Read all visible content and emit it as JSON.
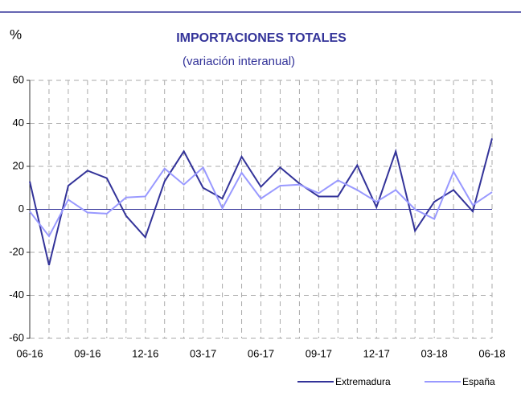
{
  "chart_data": {
    "type": "line",
    "title": "IMPORTACIONES TOTALES",
    "subtitle": "(variación interanual)",
    "y_label": "%",
    "categories": [
      "06-16",
      null,
      null,
      "09-16",
      null,
      null,
      "12-16",
      null,
      null,
      "03-17",
      null,
      null,
      "06-17",
      null,
      null,
      "09-17",
      null,
      null,
      "12-17",
      null,
      null,
      "03-18",
      null,
      null,
      "06-18"
    ],
    "series": [
      {
        "name": "Extremadura",
        "color": "#333399",
        "values": [
          13,
          -26,
          11,
          18,
          14.5,
          -3,
          -13,
          13,
          27,
          10,
          5,
          24.5,
          10.5,
          19.5,
          12,
          6,
          6,
          20.5,
          1,
          27,
          -10,
          3.5,
          9,
          -1,
          33
        ]
      },
      {
        "name": "España",
        "color": "#9999ff",
        "values": [
          -1,
          -12.5,
          4.5,
          -1.5,
          -2,
          5.5,
          6,
          19,
          11.5,
          19.5,
          0.5,
          17,
          5,
          11,
          11.5,
          7.5,
          13.5,
          9,
          3.5,
          9,
          0,
          -4.5,
          17.5,
          2,
          8
        ]
      }
    ],
    "ylim": [
      -60,
      60
    ],
    "yticks": [
      -60,
      -40,
      -20,
      0,
      20,
      40,
      60
    ],
    "grid": true
  }
}
